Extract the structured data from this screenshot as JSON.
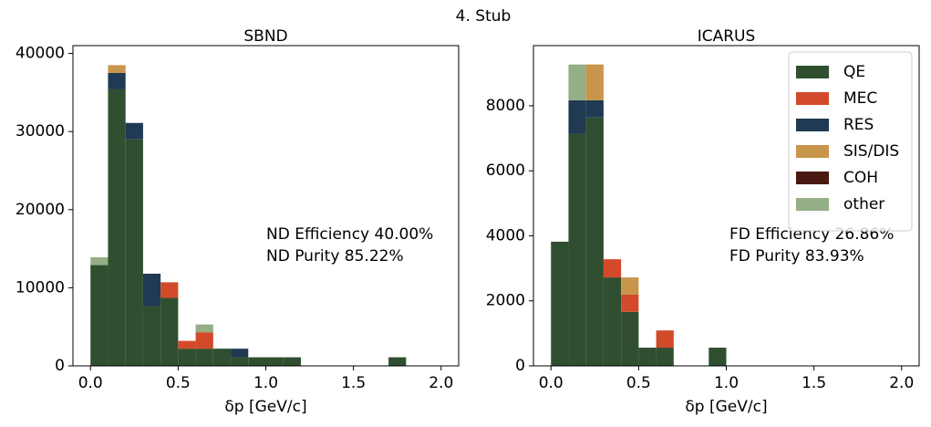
{
  "title": "4. Stub",
  "chart_data": [
    {
      "type": "histogram",
      "title": "SBND",
      "xlabel": "δp [GeV/c]",
      "bins": [
        0,
        0.1,
        0.2,
        0.3,
        0.4,
        0.5,
        0.6,
        0.7,
        0.8,
        0.9,
        1.0,
        1.1,
        1.2,
        1.3,
        1.4,
        1.5,
        1.6,
        1.7,
        1.8,
        1.9,
        2.0
      ],
      "xlim": [
        -0.1,
        2.1
      ],
      "ylim": [
        0,
        41000
      ],
      "xticks": [
        {
          "value": 0,
          "label": "0.0"
        },
        0.5,
        {
          "value": 1,
          "label": "1.0"
        },
        1.5,
        {
          "value": 2,
          "label": "2.0"
        }
      ],
      "yticks": [
        0,
        10000,
        20000,
        30000,
        40000
      ],
      "annotations": [
        "ND Efficiency 40.00%",
        "ND Purity 85.22%"
      ],
      "series": [
        {
          "color": "#2f4f30",
          "values": [
            12900,
            35400,
            29000,
            7600,
            8700,
            2200,
            2200,
            2200,
            1100,
            1100,
            1100,
            1100,
            0,
            0,
            0,
            0,
            0,
            1100,
            0,
            0
          ]
        },
        {
          "color": "#d24a2a",
          "values": [
            0,
            0,
            0,
            0,
            2000,
            1000,
            2100,
            0,
            0,
            0,
            0,
            0,
            0,
            0,
            0,
            0,
            0,
            0,
            0,
            0
          ]
        },
        {
          "color": "#1f3a52",
          "values": [
            0,
            2100,
            2100,
            4200,
            0,
            0,
            0,
            0,
            1100,
            0,
            0,
            0,
            0,
            0,
            0,
            0,
            0,
            0,
            0,
            0
          ]
        },
        {
          "color": "#c8954a",
          "values": [
            0,
            1000,
            0,
            0,
            0,
            0,
            0,
            0,
            0,
            0,
            0,
            0,
            0,
            0,
            0,
            0,
            0,
            0,
            0,
            0
          ]
        },
        {
          "color": "#4a1a12",
          "values": [
            0,
            0,
            0,
            0,
            0,
            0,
            0,
            0,
            0,
            0,
            0,
            0,
            0,
            0,
            0,
            0,
            0,
            0,
            0,
            0
          ]
        },
        {
          "color": "#94ae86",
          "values": [
            1000,
            0,
            0,
            0,
            0,
            0,
            1000,
            0,
            0,
            0,
            0,
            0,
            0,
            0,
            0,
            0,
            0,
            0,
            0,
            0
          ]
        }
      ]
    },
    {
      "type": "histogram",
      "title": "ICARUS",
      "xlabel": "δp [GeV/c]",
      "bins": [
        0,
        0.1,
        0.2,
        0.3,
        0.4,
        0.5,
        0.6,
        0.7,
        0.8,
        0.9,
        1.0,
        1.1,
        1.2,
        1.3,
        1.4,
        1.5,
        1.6,
        1.7,
        1.8,
        1.9,
        2.0
      ],
      "xlim": [
        -0.1,
        2.1
      ],
      "ylim": [
        0,
        9850
      ],
      "xticks": [
        {
          "value": 0,
          "label": "0.0"
        },
        0.5,
        {
          "value": 1,
          "label": "1.0"
        },
        1.5,
        {
          "value": 2,
          "label": "2.0"
        }
      ],
      "yticks": [
        0,
        2000,
        4000,
        6000,
        8000
      ],
      "annotations": [
        "FD Efficiency 26.86%",
        "FD Purity 83.93%"
      ],
      "legend": "upper right",
      "series": [
        {
          "name": "QE",
          "color": "#2f4f30",
          "values": [
            3820,
            7130,
            7640,
            2720,
            1660,
            560,
            560,
            0,
            0,
            560,
            0,
            0,
            0,
            0,
            0,
            0,
            0,
            0,
            0,
            0
          ]
        },
        {
          "name": "MEC",
          "color": "#d24a2a",
          "values": [
            0,
            0,
            0,
            560,
            530,
            0,
            530,
            0,
            0,
            0,
            0,
            0,
            0,
            0,
            0,
            0,
            0,
            0,
            0,
            0
          ]
        },
        {
          "name": "RES",
          "color": "#1f3a52",
          "values": [
            0,
            1040,
            530,
            0,
            0,
            0,
            0,
            0,
            0,
            0,
            0,
            0,
            0,
            0,
            0,
            0,
            0,
            0,
            0,
            0
          ]
        },
        {
          "name": "SIS/DIS",
          "color": "#c8954a",
          "values": [
            0,
            0,
            1100,
            0,
            530,
            0,
            0,
            0,
            0,
            0,
            0,
            0,
            0,
            0,
            0,
            0,
            0,
            0,
            0,
            0
          ]
        },
        {
          "name": "COH",
          "color": "#4a1a12",
          "values": [
            0,
            0,
            0,
            0,
            0,
            0,
            0,
            0,
            0,
            0,
            0,
            0,
            0,
            0,
            0,
            0,
            0,
            0,
            0,
            0
          ]
        },
        {
          "name": "other",
          "color": "#94ae86",
          "values": [
            0,
            1100,
            0,
            0,
            0,
            0,
            0,
            0,
            0,
            0,
            0,
            0,
            0,
            0,
            0,
            0,
            0,
            0,
            0,
            0
          ]
        }
      ]
    }
  ]
}
